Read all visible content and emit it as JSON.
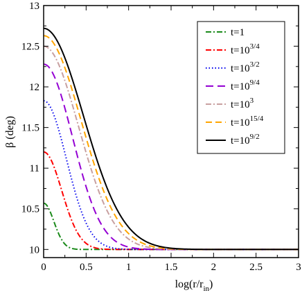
{
  "chart_data": {
    "type": "line",
    "xlabel": "log(r/r",
    "xlabel_sub": "in",
    "xlabel_close": ")",
    "ylabel": "β (deg)",
    "xlim": [
      0,
      3
    ],
    "ylim": [
      9.9,
      13
    ],
    "x_ticks": [
      0,
      0.5,
      1,
      1.5,
      2,
      2.5,
      3
    ],
    "x_tick_labels": [
      "0",
      "0.5",
      "1",
      "1.5",
      "2",
      "2.5",
      "3"
    ],
    "y_ticks": [
      10,
      10.5,
      11,
      11.5,
      12,
      12.5,
      13
    ],
    "y_tick_labels": [
      "10",
      "10.5",
      "11",
      "11.5",
      "12",
      "12.5",
      "13"
    ],
    "grid": false,
    "legend_position": "top-right",
    "series": [
      {
        "name": "t=1",
        "label_base": "t=1",
        "label_sup": "",
        "color": "#1a8a1a",
        "dash": "8,3,2,3",
        "y0": 10.57,
        "scale": 0.17
      },
      {
        "name": "t=10^3/4",
        "label_base": "t=10",
        "label_sup": "3/4",
        "color": "#ff0000",
        "dash": "8,3,2,3",
        "y0": 11.2,
        "scale": 0.3
      },
      {
        "name": "t=10^3/2",
        "label_base": "t=10",
        "label_sup": "3/2",
        "color": "#0000ee",
        "dash": "1.5,3",
        "y0": 11.83,
        "scale": 0.38
      },
      {
        "name": "t=10^9/4",
        "label_base": "t=10",
        "label_sup": "9/4",
        "color": "#9400d3",
        "dash": "11,6",
        "y0": 12.28,
        "scale": 0.48
      },
      {
        "name": "t=10^3",
        "label_base": "t=10",
        "label_sup": "3",
        "color": "#c8a0a0",
        "dash": "8,3,2,3",
        "y0": 12.5,
        "scale": 0.58
      },
      {
        "name": "t=10^15/4",
        "label_base": "t=10",
        "label_sup": "15/4",
        "color": "#ffa500",
        "dash": "9,5",
        "y0": 12.63,
        "scale": 0.62
      },
      {
        "name": "t=10^9/2",
        "label_base": "t=10",
        "label_sup": "9/2",
        "color": "#000000",
        "dash": "",
        "y0": 12.72,
        "scale": 0.66
      }
    ]
  }
}
